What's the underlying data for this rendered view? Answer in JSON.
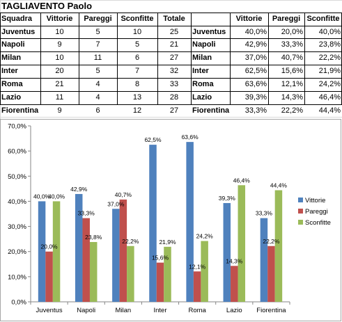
{
  "sheet": {
    "title": "TAGLIAVENTO Paolo",
    "left_table": {
      "headers": [
        "Squadra",
        "Vittorie",
        "Pareggi",
        "Sconfitte",
        "Totale"
      ],
      "rows": [
        [
          "Juventus",
          "10",
          "5",
          "10",
          "25"
        ],
        [
          "Napoli",
          "9",
          "7",
          "5",
          "21"
        ],
        [
          "Milan",
          "10",
          "11",
          "6",
          "27"
        ],
        [
          "Inter",
          "20",
          "5",
          "7",
          "32"
        ],
        [
          "Roma",
          "21",
          "4",
          "8",
          "33"
        ],
        [
          "Lazio",
          "11",
          "4",
          "13",
          "28"
        ],
        [
          "Fiorentina",
          "9",
          "6",
          "12",
          "27"
        ]
      ]
    },
    "right_table": {
      "headers": [
        "",
        "Vittorie",
        "Pareggi",
        "Sconfitte"
      ],
      "rows": [
        [
          "Juventus",
          "40,0%",
          "20,0%",
          "40,0%"
        ],
        [
          "Napoli",
          "42,9%",
          "33,3%",
          "23,8%"
        ],
        [
          "Milan",
          "37,0%",
          "40,7%",
          "22,2%"
        ],
        [
          "Inter",
          "62,5%",
          "15,6%",
          "21,9%"
        ],
        [
          "Roma",
          "63,6%",
          "12,1%",
          "24,2%"
        ],
        [
          "Lazio",
          "39,3%",
          "14,3%",
          "46,4%"
        ],
        [
          "Fiorentina",
          "33,3%",
          "22,2%",
          "44,4%"
        ]
      ]
    }
  },
  "chart_data": {
    "type": "bar",
    "title": "",
    "xlabel": "",
    "ylabel": "",
    "categories": [
      "Juventus",
      "Napoli",
      "Milan",
      "Inter",
      "Roma",
      "Lazio",
      "Fiorentina"
    ],
    "series": [
      {
        "name": "Vittorie",
        "color": "#4f81bd",
        "values": [
          40.0,
          42.9,
          37.0,
          62.5,
          63.6,
          39.3,
          33.3
        ],
        "labels": [
          "40,0%",
          "42,9%",
          "37,0%",
          "62,5%",
          "63,6%",
          "39,3%",
          "33,3%"
        ]
      },
      {
        "name": "Pareggi",
        "color": "#c0504d",
        "values": [
          20.0,
          33.3,
          40.7,
          15.6,
          12.1,
          14.3,
          22.2
        ],
        "labels": [
          "20,0%",
          "33,3%",
          "40,7%",
          "15,6%",
          "12,1%",
          "14,3%",
          "22,2%"
        ]
      },
      {
        "name": "Sconfitte",
        "color": "#9bbb59",
        "values": [
          40.0,
          23.8,
          22.2,
          21.9,
          24.2,
          46.4,
          44.4
        ],
        "labels": [
          "40,0%",
          "23,8%",
          "22,2%",
          "21,9%",
          "24,2%",
          "46,4%",
          "44,4%"
        ]
      }
    ],
    "ylim": [
      0,
      70
    ],
    "yticks": [
      "0,0%",
      "10,0%",
      "20,0%",
      "30,0%",
      "40,0%",
      "50,0%",
      "60,0%",
      "70,0%"
    ],
    "grid": false,
    "legend": "right"
  }
}
